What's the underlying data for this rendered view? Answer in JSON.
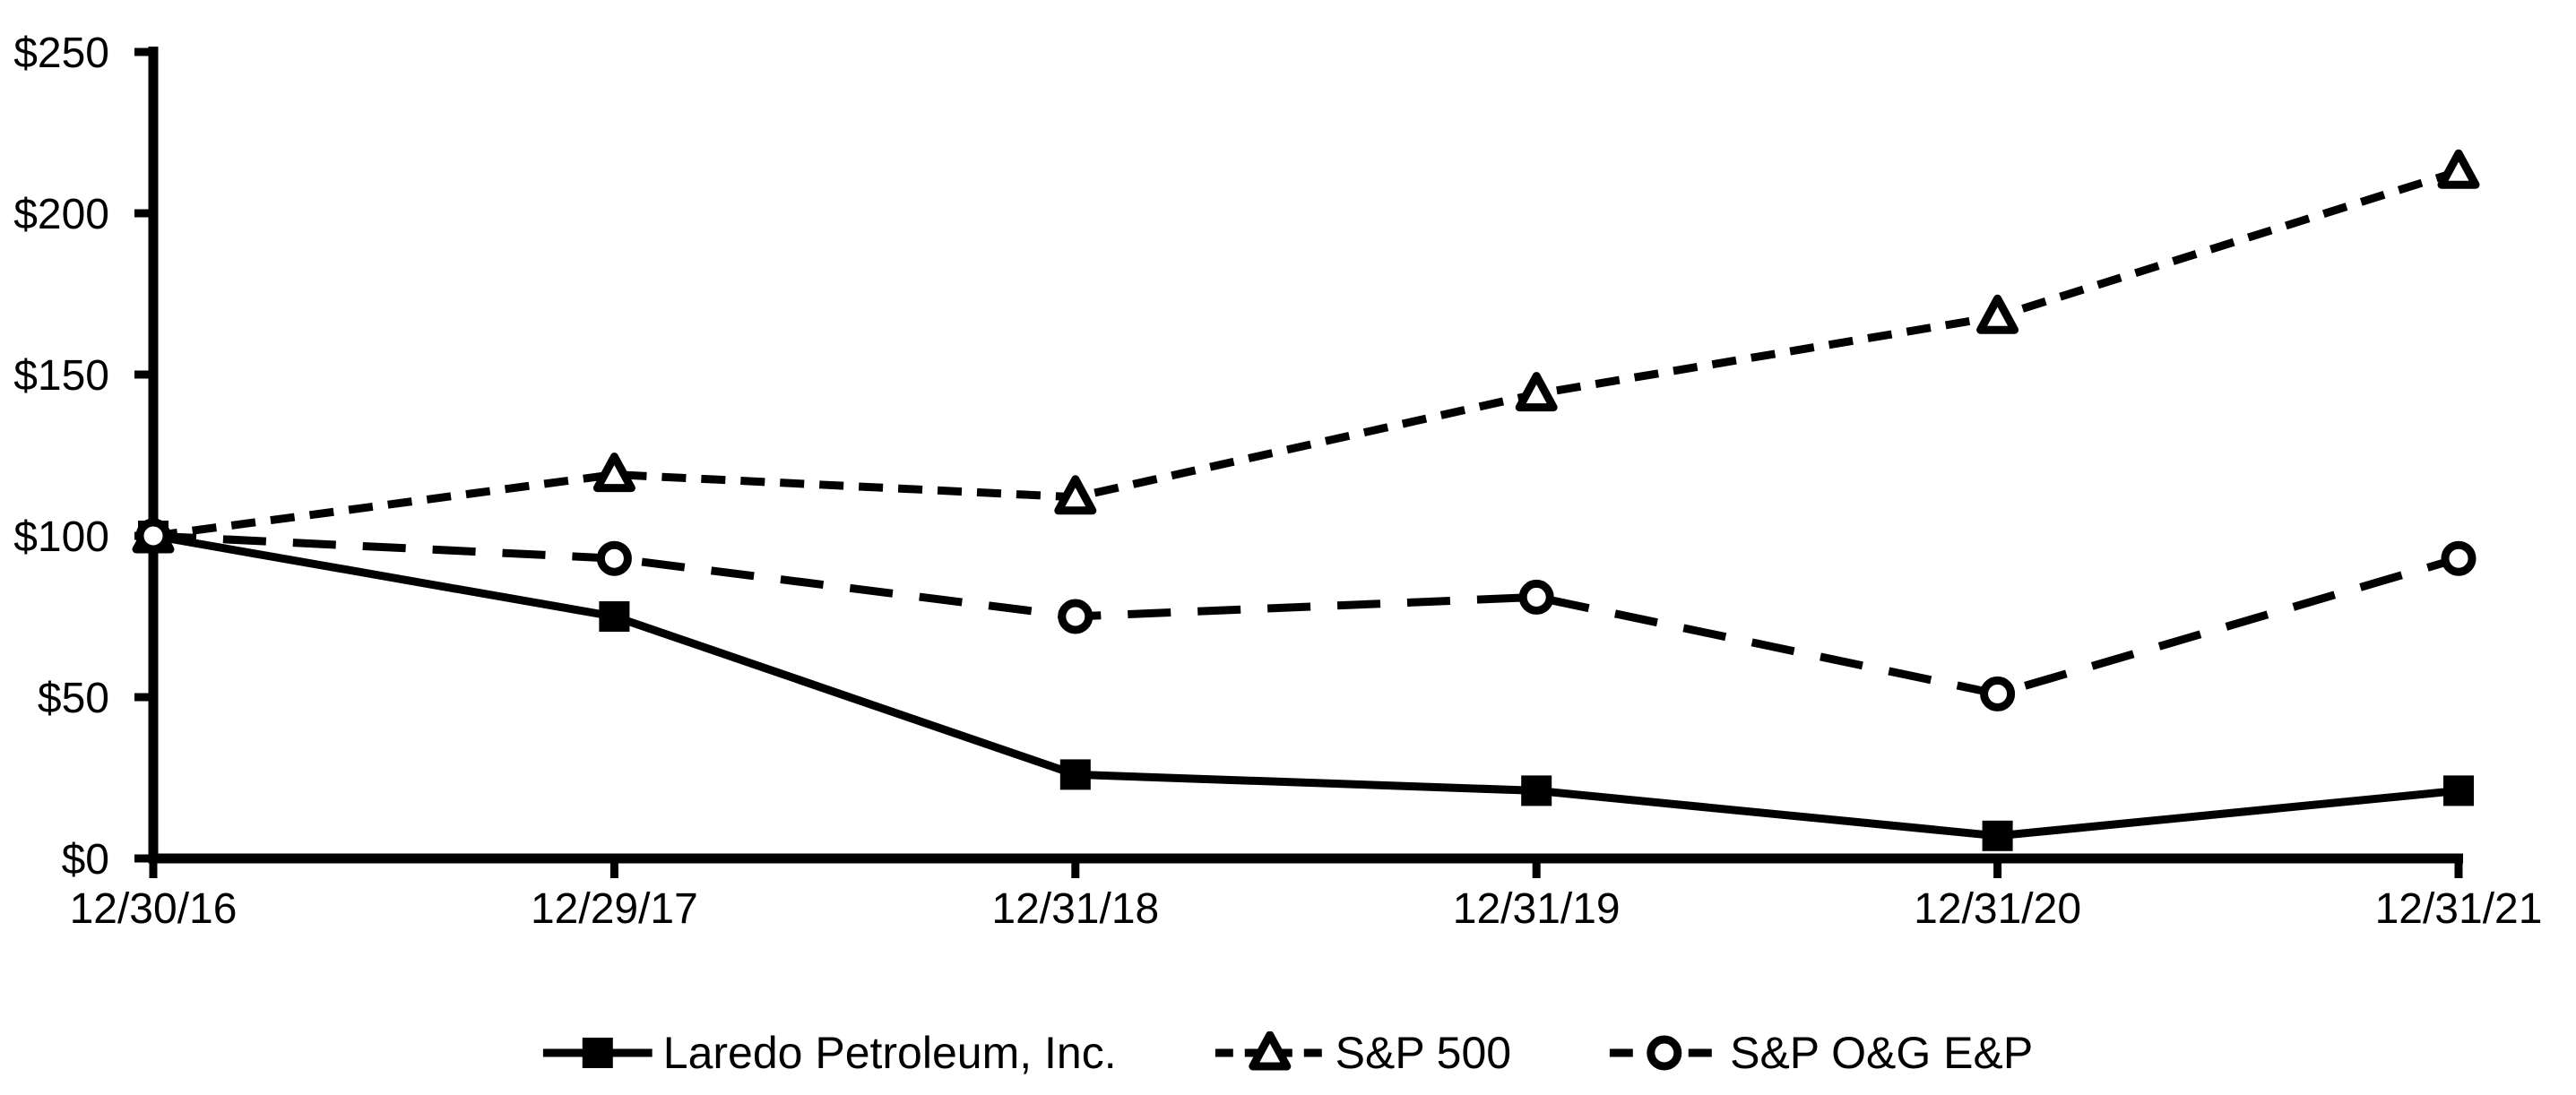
{
  "figure": {
    "background_color": "#FFFFFF",
    "foreground_color": "#000000"
  },
  "chart_data": {
    "type": "line",
    "title": "",
    "x_categories": [
      "12/30/16",
      "12/29/17",
      "12/31/18",
      "12/31/19",
      "12/31/20",
      "12/31/21"
    ],
    "y_axis": {
      "min": 0,
      "max": 250,
      "step": 50,
      "prefix": "$",
      "tick_labels": [
        "$0",
        "$50",
        "$100",
        "$150",
        "$200",
        "$250"
      ]
    },
    "grid": false,
    "legend_position": "bottom-center",
    "series": [
      {
        "name": "Laredo Petroleum, Inc.",
        "color": "#000000",
        "line_style": "solid",
        "marker": "filled-square",
        "values": [
          100,
          75,
          26,
          21,
          7,
          21
        ]
      },
      {
        "name": "S&P 500",
        "color": "#000000",
        "line_style": "short-dash",
        "marker": "open-triangle",
        "values": [
          100,
          119,
          112,
          144,
          168,
          213
        ]
      },
      {
        "name": "S&P O&G E&P",
        "color": "#000000",
        "line_style": "long-dash",
        "marker": "open-circle",
        "values": [
          100,
          93,
          75,
          81,
          51,
          93
        ]
      }
    ]
  }
}
